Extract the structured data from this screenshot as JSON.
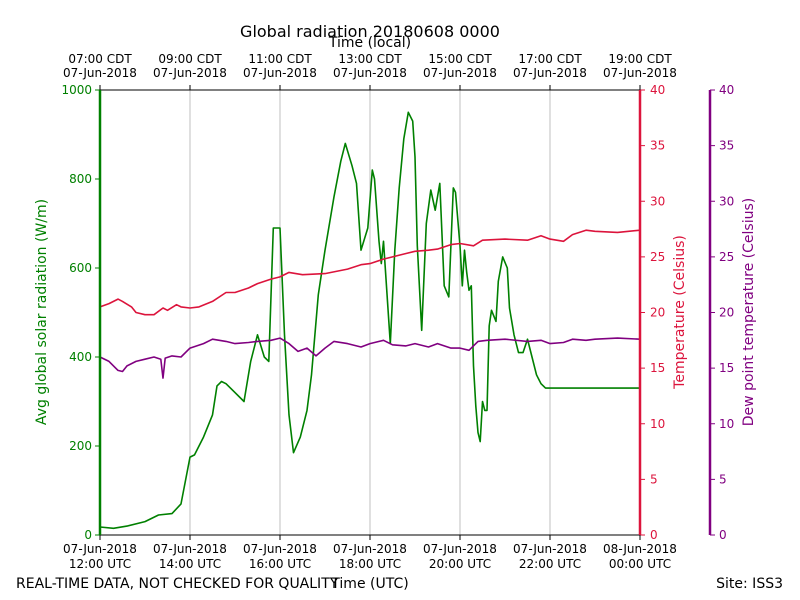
{
  "chart_data": {
    "type": "line",
    "title": "Global radiation 20180608 0000",
    "top_axis_label": "Time (local)",
    "xlabel": "Time (UTC)",
    "x_range_hours_utc": [
      12,
      24
    ],
    "top_ticks": [
      {
        "hour": 12,
        "time": "07:00 CDT",
        "date": "07-Jun-2018"
      },
      {
        "hour": 14,
        "time": "09:00 CDT",
        "date": "07-Jun-2018"
      },
      {
        "hour": 16,
        "time": "11:00 CDT",
        "date": "07-Jun-2018"
      },
      {
        "hour": 18,
        "time": "13:00 CDT",
        "date": "07-Jun-2018"
      },
      {
        "hour": 20,
        "time": "15:00 CDT",
        "date": "07-Jun-2018"
      },
      {
        "hour": 22,
        "time": "17:00 CDT",
        "date": "07-Jun-2018"
      },
      {
        "hour": 24,
        "time": "19:00 CDT",
        "date": "07-Jun-2018"
      }
    ],
    "bottom_ticks": [
      {
        "hour": 12,
        "date": "07-Jun-2018",
        "time": "12:00 UTC"
      },
      {
        "hour": 14,
        "date": "07-Jun-2018",
        "time": "14:00 UTC"
      },
      {
        "hour": 16,
        "date": "07-Jun-2018",
        "time": "16:00 UTC"
      },
      {
        "hour": 18,
        "date": "07-Jun-2018",
        "time": "18:00 UTC"
      },
      {
        "hour": 20,
        "date": "07-Jun-2018",
        "time": "20:00 UTC"
      },
      {
        "hour": 22,
        "date": "07-Jun-2018",
        "time": "22:00 UTC"
      },
      {
        "hour": 24,
        "date": "08-Jun-2018",
        "time": "00:00 UTC"
      }
    ],
    "y_axes": [
      {
        "id": "radiation",
        "label": "Avg global solar radiation (W/m)",
        "ylim": [
          0,
          1000
        ],
        "ticks": [
          0,
          200,
          400,
          600,
          800,
          1000
        ],
        "color": "#008000",
        "side": "left"
      },
      {
        "id": "temperature",
        "label": "Temperature (Celsius)",
        "ylim": [
          0,
          40
        ],
        "ticks": [
          0,
          5,
          10,
          15,
          20,
          25,
          30,
          35,
          40
        ],
        "color": "#dc143c",
        "side": "right"
      },
      {
        "id": "dewpoint",
        "label": "Dew point temperature (Celsius)",
        "ylim": [
          0,
          40
        ],
        "ticks": [
          0,
          5,
          10,
          15,
          20,
          25,
          30,
          35,
          40
        ],
        "color": "#800080",
        "side": "right-outer"
      }
    ],
    "series": [
      {
        "name": "Avg global solar radiation",
        "axis": "radiation",
        "color": "#008000",
        "x": [
          12.0,
          12.3,
          12.6,
          13.0,
          13.3,
          13.6,
          13.8,
          14.0,
          14.1,
          14.3,
          14.5,
          14.6,
          14.7,
          14.8,
          15.0,
          15.2,
          15.35,
          15.5,
          15.65,
          15.75,
          15.85,
          16.0,
          16.1,
          16.2,
          16.3,
          16.45,
          16.6,
          16.7,
          16.85,
          17.0,
          17.2,
          17.35,
          17.45,
          17.6,
          17.7,
          17.8,
          17.95,
          18.05,
          18.1,
          18.2,
          18.25,
          18.3,
          18.45,
          18.55,
          18.65,
          18.75,
          18.85,
          18.95,
          19.0,
          19.05,
          19.15,
          19.25,
          19.35,
          19.45,
          19.55,
          19.65,
          19.75,
          19.85,
          19.9,
          20.0,
          20.05,
          20.1,
          20.15,
          20.2,
          20.25,
          20.3,
          20.35,
          20.4,
          20.45,
          20.5,
          20.55,
          20.6,
          20.65,
          20.7,
          20.8,
          20.85,
          20.95,
          21.05,
          21.1,
          21.2,
          21.3,
          21.4,
          21.5,
          21.6,
          21.7,
          21.8,
          21.9,
          22.0,
          22.1,
          22.2,
          22.35,
          22.5,
          22.6,
          22.7,
          22.8,
          22.85,
          22.95,
          23.05,
          23.15,
          23.25,
          23.35,
          23.5,
          23.6,
          23.7,
          23.75,
          23.9,
          24.0
        ],
        "values": [
          18,
          15,
          20,
          30,
          45,
          48,
          70,
          175,
          180,
          220,
          270,
          335,
          345,
          340,
          320,
          300,
          390,
          450,
          400,
          390,
          690,
          690,
          450,
          270,
          185,
          220,
          280,
          360,
          540,
          640,
          760,
          840,
          880,
          830,
          790,
          640,
          690,
          820,
          800,
          660,
          610,
          660,
          430,
          640,
          780,
          890,
          950,
          930,
          850,
          650,
          460,
          700,
          775,
          730,
          790,
          560,
          535,
          780,
          770,
          650,
          560,
          640,
          590,
          550,
          560,
          380,
          290,
          230,
          210,
          300,
          280,
          280,
          470,
          505,
          480,
          570,
          625,
          600,
          510,
          450,
          410,
          410,
          440,
          400,
          360,
          340,
          330,
          330,
          330,
          330,
          330,
          330,
          330,
          330,
          330,
          330,
          330,
          330,
          330,
          330,
          330,
          330,
          330,
          330,
          330,
          330,
          330
        ]
      },
      {
        "name": "Temperature",
        "axis": "temperature",
        "color": "#dc143c",
        "x": [
          12.0,
          12.2,
          12.4,
          12.5,
          12.7,
          12.8,
          13.0,
          13.2,
          13.4,
          13.5,
          13.7,
          13.8,
          14.0,
          14.2,
          14.5,
          14.8,
          15.0,
          15.3,
          15.5,
          15.8,
          16.0,
          16.2,
          16.5,
          17.0,
          17.5,
          17.8,
          18.0,
          18.3,
          18.5,
          18.8,
          19.0,
          19.3,
          19.5,
          19.8,
          20.0,
          20.3,
          20.5,
          21.0,
          21.5,
          21.8,
          22.0,
          22.3,
          22.5,
          22.8,
          23.0,
          23.5,
          24.0
        ],
        "values": [
          20.5,
          20.8,
          21.2,
          21.0,
          20.5,
          20.0,
          19.8,
          19.8,
          20.4,
          20.2,
          20.7,
          20.5,
          20.4,
          20.5,
          21.0,
          21.8,
          21.8,
          22.2,
          22.6,
          23.0,
          23.2,
          23.6,
          23.4,
          23.5,
          23.9,
          24.3,
          24.4,
          24.8,
          25.0,
          25.3,
          25.5,
          25.6,
          25.7,
          26.1,
          26.2,
          26.0,
          26.5,
          26.6,
          26.5,
          26.9,
          26.6,
          26.4,
          27.0,
          27.4,
          27.3,
          27.2,
          27.4
        ]
      },
      {
        "name": "Dew point temperature",
        "axis": "dewpoint",
        "color": "#800080",
        "x": [
          12.0,
          12.2,
          12.4,
          12.5,
          12.6,
          12.8,
          13.0,
          13.2,
          13.35,
          13.4,
          13.45,
          13.6,
          13.8,
          14.0,
          14.3,
          14.5,
          14.8,
          15.0,
          15.3,
          15.5,
          15.8,
          16.0,
          16.2,
          16.4,
          16.6,
          16.8,
          17.0,
          17.2,
          17.5,
          17.8,
          18.0,
          18.3,
          18.5,
          18.8,
          19.0,
          19.3,
          19.5,
          19.8,
          20.0,
          20.2,
          20.4,
          20.6,
          21.0,
          21.5,
          21.8,
          22.0,
          22.3,
          22.5,
          22.8,
          23.0,
          23.5,
          24.0
        ],
        "values": [
          16.0,
          15.6,
          14.8,
          14.7,
          15.2,
          15.6,
          15.8,
          16.0,
          15.8,
          14.1,
          15.9,
          16.1,
          16.0,
          16.8,
          17.2,
          17.6,
          17.4,
          17.2,
          17.3,
          17.4,
          17.5,
          17.7,
          17.2,
          16.5,
          16.8,
          16.1,
          16.8,
          17.4,
          17.2,
          16.9,
          17.2,
          17.5,
          17.1,
          17.0,
          17.2,
          16.9,
          17.2,
          16.8,
          16.8,
          16.6,
          17.4,
          17.5,
          17.6,
          17.4,
          17.5,
          17.2,
          17.3,
          17.6,
          17.5,
          17.6,
          17.7,
          17.6
        ]
      }
    ]
  },
  "footer": {
    "disclaimer": "REAL-TIME DATA, NOT CHECKED FOR QUALITY",
    "site": "Site: ISS3"
  }
}
